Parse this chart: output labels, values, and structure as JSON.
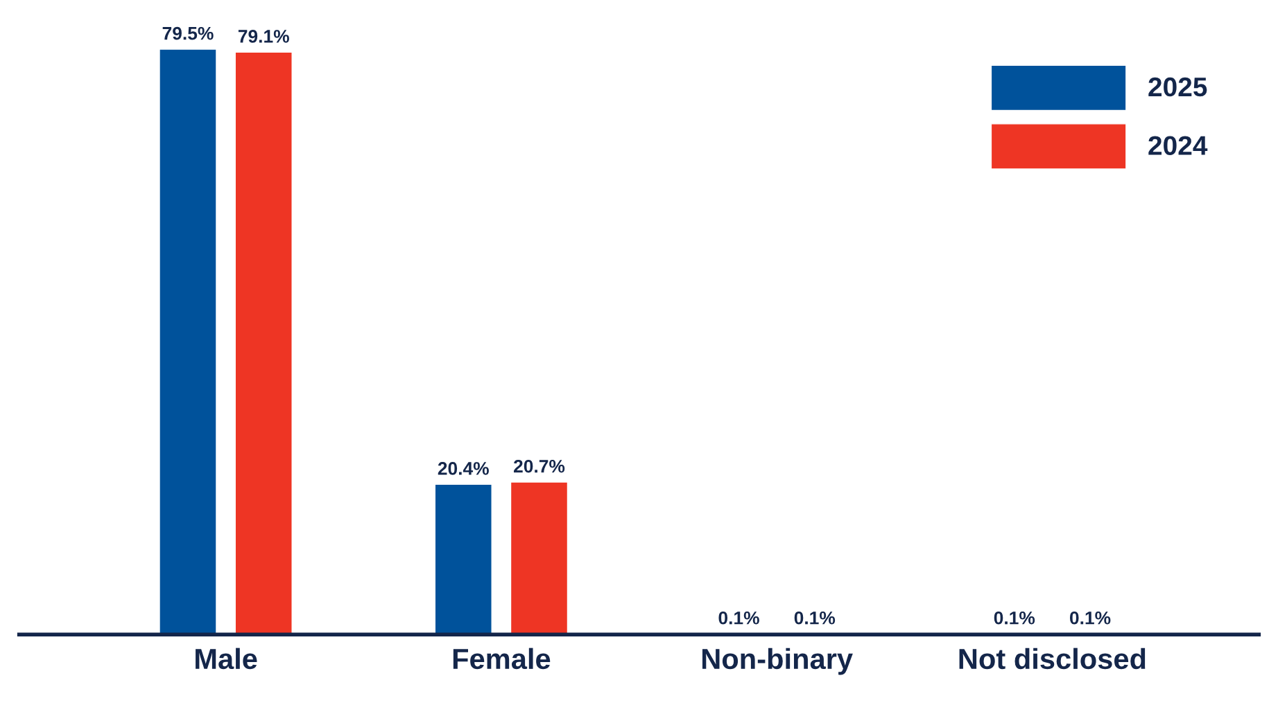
{
  "chart_data": {
    "type": "bar",
    "categories": [
      "Male",
      "Female",
      "Non-binary",
      "Not disclosed"
    ],
    "series": [
      {
        "name": "2025",
        "color": "#00529b",
        "values": [
          79.5,
          20.4,
          0.1,
          0.1
        ],
        "value_labels": [
          "79.5%",
          "20.4%",
          "0.1%",
          "0.1%"
        ]
      },
      {
        "name": "2024",
        "color": "#ee3524",
        "values": [
          79.1,
          20.7,
          0.1,
          0.1
        ],
        "value_labels": [
          "79.1%",
          "20.7%",
          "0.1%",
          "0.1%"
        ]
      }
    ],
    "legend": "top right",
    "grid": false
  }
}
